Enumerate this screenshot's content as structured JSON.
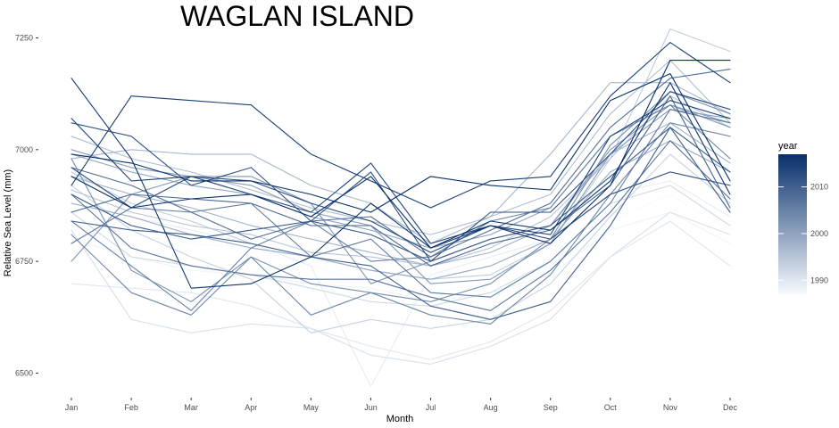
{
  "chart_data": {
    "type": "line",
    "title": "WAGLAN ISLAND",
    "xlabel": "Month",
    "ylabel": "Relative Sea Level (mm)",
    "categories": [
      "Jan",
      "Feb",
      "Mar",
      "Apr",
      "May",
      "Jun",
      "Jul",
      "Aug",
      "Sep",
      "Oct",
      "Nov",
      "Dec"
    ],
    "ylim": [
      6455,
      7285
    ],
    "yticks": [
      6500,
      6750,
      7000,
      7250
    ],
    "grid": false,
    "legend": {
      "title": "year",
      "position": "right",
      "type": "colorbar",
      "range": [
        1987,
        2017
      ],
      "ticks": [
        1990,
        2000,
        2010
      ],
      "color_low": "#f7fbff",
      "color_high": "#08306b"
    },
    "series": [
      {
        "year": 1987,
        "values": [
          6840,
          6810,
          6790,
          6780,
          6740,
          6700,
          6680,
          6700,
          6740,
          6840,
          6900,
          6820
        ]
      },
      {
        "year": 1988,
        "values": [
          6800,
          6760,
          6730,
          6720,
          6700,
          6690,
          6660,
          6680,
          6720,
          6820,
          6860,
          6790
        ]
      },
      {
        "year": 1989,
        "values": [
          6880,
          6850,
          6820,
          6790,
          6740,
          6470,
          6720,
          6760,
          6800,
          6900,
          6930,
          6850
        ]
      },
      {
        "year": 1990,
        "values": [
          6700,
          6690,
          6680,
          6650,
          6600,
          6560,
          6530,
          6570,
          6640,
          6760,
          6840,
          6740
        ]
      },
      {
        "year": 1991,
        "values": [
          6820,
          6620,
          6590,
          6610,
          6600,
          6540,
          6520,
          6560,
          6620,
          6760,
          6860,
          6810
        ]
      },
      {
        "year": 1992,
        "values": [
          6860,
          6760,
          6740,
          6720,
          6690,
          6660,
          6650,
          6680,
          6750,
          6880,
          6920,
          6830
        ]
      },
      {
        "year": 1993,
        "values": [
          6920,
          6820,
          6760,
          6710,
          6590,
          6620,
          6600,
          6620,
          6700,
          6850,
          6990,
          6880
        ]
      },
      {
        "year": 1994,
        "values": [
          6950,
          6880,
          6840,
          6790,
          6760,
          6730,
          6710,
          6720,
          6790,
          6980,
          7270,
          7220
        ]
      },
      {
        "year": 1995,
        "values": [
          6910,
          6860,
          6830,
          6810,
          6770,
          6760,
          6740,
          6780,
          6850,
          6980,
          7120,
          7050
        ]
      },
      {
        "year": 1996,
        "values": [
          7030,
          6980,
          6950,
          6910,
          6870,
          6840,
          6810,
          6850,
          6900,
          7080,
          7200,
          7060
        ]
      },
      {
        "year": 1997,
        "values": [
          6980,
          7000,
          6990,
          6990,
          6920,
          6880,
          6790,
          6850,
          6990,
          7150,
          7150,
          7080
        ]
      },
      {
        "year": 1998,
        "values": [
          6940,
          6900,
          6870,
          6830,
          6800,
          6770,
          6740,
          6770,
          6830,
          6990,
          7060,
          6970
        ]
      },
      {
        "year": 1999,
        "values": [
          6880,
          6850,
          6810,
          6780,
          6760,
          6730,
          6710,
          6740,
          6800,
          6950,
          7020,
          6950
        ]
      },
      {
        "year": 2000,
        "values": [
          6990,
          6950,
          6920,
          6900,
          6850,
          6820,
          6780,
          6810,
          6870,
          7030,
          7100,
          7060
        ]
      },
      {
        "year": 2001,
        "values": [
          7000,
          6960,
          6940,
          6920,
          6860,
          6830,
          6700,
          6710,
          6790,
          6990,
          7090,
          7070
        ]
      },
      {
        "year": 2002,
        "values": [
          6750,
          6900,
          6940,
          6940,
          6880,
          6700,
          6750,
          6800,
          6830,
          7000,
          7100,
          7050
        ]
      },
      {
        "year": 2003,
        "values": [
          6980,
          6730,
          6660,
          6760,
          6700,
          6680,
          6660,
          6700,
          6800,
          7010,
          7130,
          7080
        ]
      },
      {
        "year": 2004,
        "values": [
          6810,
          6680,
          6630,
          6760,
          6630,
          6680,
          6630,
          6610,
          6720,
          6900,
          7060,
          7030
        ]
      },
      {
        "year": 2005,
        "values": [
          6840,
          6740,
          6640,
          6780,
          6840,
          6750,
          6760,
          6840,
          6870,
          7030,
          7100,
          6980
        ]
      },
      {
        "year": 2006,
        "values": [
          6790,
          6870,
          6860,
          6880,
          6760,
          6800,
          6680,
          6670,
          6750,
          6880,
          7090,
          7060
        ]
      },
      {
        "year": 2007,
        "values": [
          6900,
          6780,
          6740,
          6720,
          6710,
          6710,
          6670,
          6640,
          6730,
          6860,
          7020,
          6890
        ]
      },
      {
        "year": 2008,
        "values": [
          6960,
          6920,
          6860,
          6800,
          6840,
          6850,
          6760,
          6820,
          6880,
          7050,
          7160,
          7180
        ]
      },
      {
        "year": 2009,
        "values": [
          6860,
          6900,
          6890,
          6880,
          6830,
          6830,
          6740,
          6790,
          6820,
          6920,
          7120,
          6870
        ]
      },
      {
        "year": 2010,
        "values": [
          6840,
          6820,
          6810,
          6790,
          6760,
          6740,
          6650,
          6620,
          6660,
          6830,
          7050,
          6860
        ]
      },
      {
        "year": 2011,
        "values": [
          6900,
          6830,
          6800,
          6820,
          6840,
          6810,
          6750,
          6800,
          6830,
          6940,
          7050,
          6950
        ]
      },
      {
        "year": 2012,
        "values": [
          7060,
          7030,
          6920,
          6960,
          6840,
          6950,
          6750,
          6860,
          6860,
          6990,
          7130,
          7090
        ]
      },
      {
        "year": 2013,
        "values": [
          6960,
          6870,
          6940,
          6930,
          6880,
          6840,
          6770,
          6830,
          6800,
          6900,
          6950,
          6920
        ]
      },
      {
        "year": 2014,
        "values": [
          7070,
          6930,
          6940,
          6900,
          6860,
          6970,
          6790,
          6830,
          6810,
          7030,
          7110,
          7070
        ]
      },
      {
        "year": 2015,
        "values": [
          6920,
          7120,
          7110,
          7100,
          6990,
          6930,
          6870,
          6930,
          6940,
          7120,
          7240,
          7150
        ]
      },
      {
        "year": 2016,
        "values": [
          7160,
          6980,
          6690,
          6700,
          6760,
          6880,
          6780,
          6840,
          6820,
          6930,
          7150,
          6900
        ]
      },
      {
        "year": 2017,
        "values": [
          6990,
          6970,
          6930,
          6930,
          6900,
          6860,
          6940,
          6920,
          6910,
          7110,
          7170,
          6930
        ]
      },
      {
        "year": 2018,
        "values": [
          6940,
          6870,
          6890,
          6900,
          6850,
          6940,
          6780,
          6830,
          6790,
          6920,
          7200,
          7200
        ]
      }
    ]
  }
}
